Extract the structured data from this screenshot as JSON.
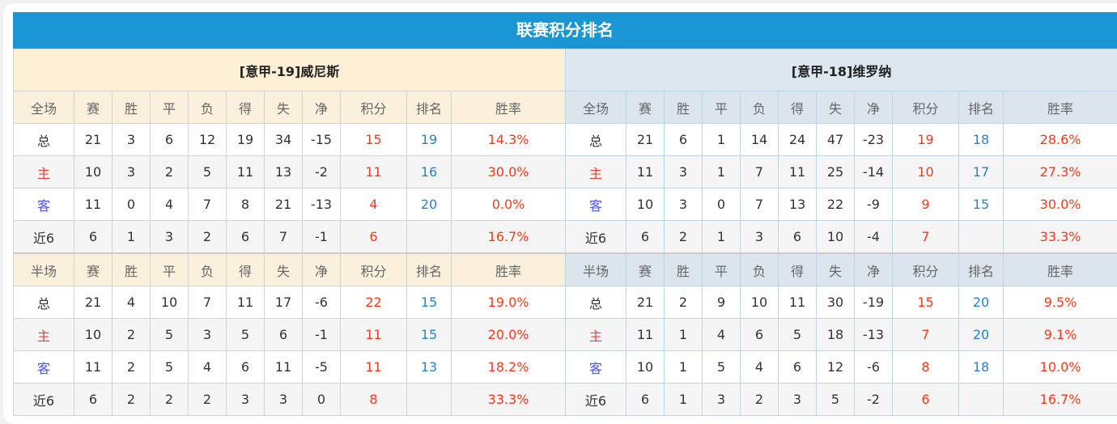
{
  "title": "联赛积分排名",
  "columns_full": [
    "全场",
    "赛",
    "胜",
    "平",
    "负",
    "得",
    "失",
    "净",
    "积分",
    "排名",
    "胜率"
  ],
  "columns_half": [
    "半场",
    "赛",
    "胜",
    "平",
    "负",
    "得",
    "失",
    "净",
    "积分",
    "排名",
    "胜率"
  ],
  "teams": [
    {
      "name": "[意甲-19]威尼斯",
      "full": [
        [
          "总",
          "21",
          "3",
          "6",
          "12",
          "19",
          "34",
          "-15",
          "15",
          "19",
          "14.3%"
        ],
        [
          "主",
          "10",
          "3",
          "2",
          "5",
          "11",
          "13",
          "-2",
          "11",
          "16",
          "30.0%"
        ],
        [
          "客",
          "11",
          "0",
          "4",
          "7",
          "8",
          "21",
          "-13",
          "4",
          "20",
          "0.0%"
        ],
        [
          "近6",
          "6",
          "1",
          "3",
          "2",
          "6",
          "7",
          "-1",
          "6",
          "",
          "16.7%"
        ]
      ],
      "half": [
        [
          "总",
          "21",
          "4",
          "10",
          "7",
          "11",
          "17",
          "-6",
          "22",
          "15",
          "19.0%"
        ],
        [
          "主",
          "10",
          "2",
          "5",
          "3",
          "5",
          "6",
          "-1",
          "11",
          "15",
          "20.0%"
        ],
        [
          "客",
          "11",
          "2",
          "5",
          "4",
          "6",
          "11",
          "-5",
          "11",
          "13",
          "18.2%"
        ],
        [
          "近6",
          "6",
          "2",
          "2",
          "2",
          "3",
          "3",
          "0",
          "8",
          "",
          "33.3%"
        ]
      ]
    },
    {
      "name": "[意甲-18]维罗纳",
      "full": [
        [
          "总",
          "21",
          "6",
          "1",
          "14",
          "24",
          "47",
          "-23",
          "19",
          "18",
          "28.6%"
        ],
        [
          "主",
          "11",
          "3",
          "1",
          "7",
          "11",
          "25",
          "-14",
          "10",
          "17",
          "27.3%"
        ],
        [
          "客",
          "10",
          "3",
          "0",
          "7",
          "13",
          "22",
          "-9",
          "9",
          "15",
          "30.0%"
        ],
        [
          "近6",
          "6",
          "2",
          "1",
          "3",
          "6",
          "10",
          "-4",
          "7",
          "",
          "33.3%"
        ]
      ],
      "half": [
        [
          "总",
          "21",
          "2",
          "9",
          "10",
          "11",
          "30",
          "-19",
          "15",
          "20",
          "9.5%"
        ],
        [
          "主",
          "11",
          "1",
          "4",
          "6",
          "5",
          "18",
          "-13",
          "7",
          "20",
          "9.1%"
        ],
        [
          "客",
          "10",
          "1",
          "5",
          "4",
          "6",
          "12",
          "-6",
          "8",
          "18",
          "10.0%"
        ],
        [
          "近6",
          "6",
          "1",
          "3",
          "2",
          "3",
          "5",
          "-2",
          "6",
          "",
          "16.7%"
        ]
      ]
    }
  ]
}
